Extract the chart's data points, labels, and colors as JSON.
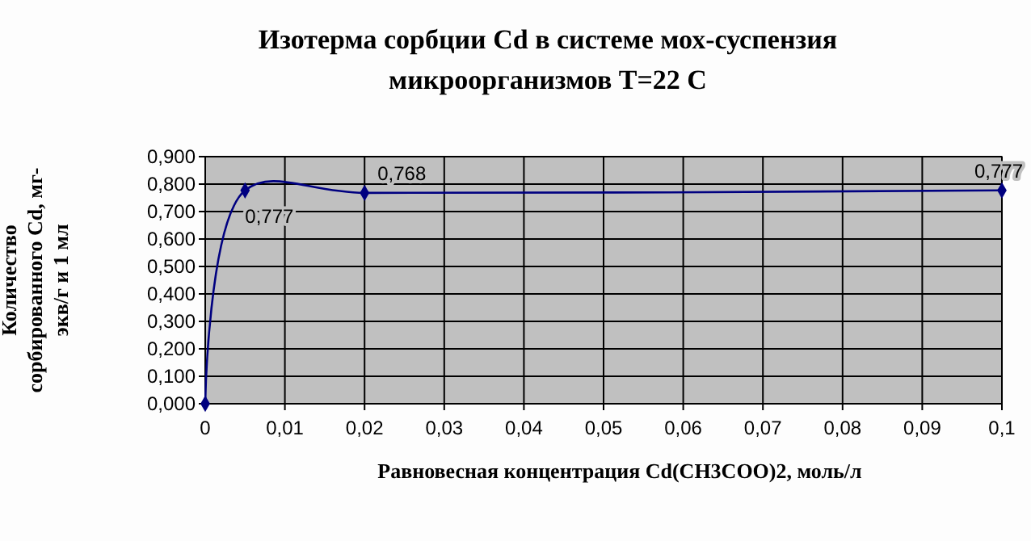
{
  "chart_data": {
    "type": "line",
    "title": "Изотерма сорбции Cd в системе мох-суспензия микроорганизмов  T=22 C",
    "xlabel": "Равновесная концентрация Cd(CH3COO)2, моль/л",
    "ylabel": "Количество сорбированного Cd, мг-экв/г  и 1 мл",
    "x": [
      0,
      0.005,
      0.02,
      0.1
    ],
    "series": [
      {
        "color": "#000080",
        "values": [
          0,
          0.777,
          0.768,
          0.777
        ],
        "value_labels": [
          null,
          "0,777",
          "0,768",
          "0,777"
        ]
      }
    ],
    "xlim": [
      0,
      0.1
    ],
    "xticks": [
      0,
      {
        "value": 0.01,
        "label": "0,01"
      },
      {
        "value": 0.02,
        "label": "0,02"
      },
      {
        "value": 0.03,
        "label": "0,03"
      },
      {
        "value": 0.04,
        "label": "0,04"
      },
      {
        "value": 0.05,
        "label": "0,05"
      },
      {
        "value": 0.06,
        "label": "0,06"
      },
      {
        "value": 0.07,
        "label": "0,07"
      },
      {
        "value": 0.08,
        "label": "0,08"
      },
      {
        "value": 0.09,
        "label": "0,09"
      },
      {
        "value": 0.1,
        "label": "0,1"
      }
    ],
    "ylim": [
      0,
      0.9
    ],
    "yticks": [
      {
        "value": 0,
        "label": "0,000"
      },
      {
        "value": 0.1,
        "label": "0,100"
      },
      {
        "value": 0.2,
        "label": "0,200"
      },
      {
        "value": 0.3,
        "label": "0,300"
      },
      {
        "value": 0.4,
        "label": "0,400"
      },
      {
        "value": 0.5,
        "label": "0,500"
      },
      {
        "value": 0.6,
        "label": "0,600"
      },
      {
        "value": 0.7,
        "label": "0,700"
      },
      {
        "value": 0.8,
        "label": "0,800"
      },
      {
        "value": 0.9,
        "label": "0,900"
      }
    ],
    "grid": true,
    "marker": "diamond",
    "line_style": "solid"
  }
}
